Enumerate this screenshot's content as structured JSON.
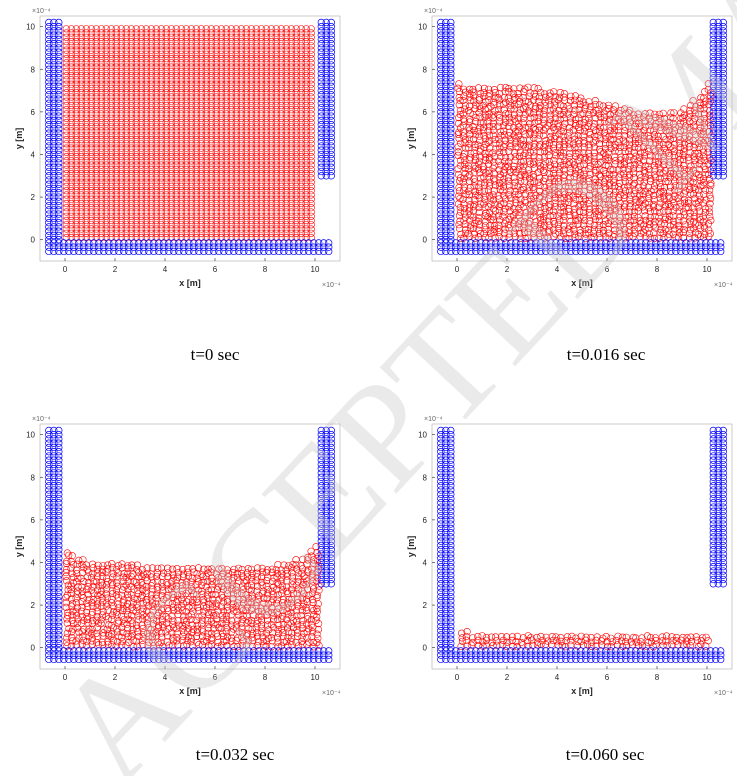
{
  "watermark": "ACCEPTED MANUSCRIPT",
  "chart_data": [
    {
      "type": "scatter",
      "caption": "t=0 sec",
      "xlabel": "x [m]",
      "ylabel": "y [m]",
      "x_exponent": "×10⁻⁴",
      "y_exponent": "×10⁻⁴",
      "xlim": [
        -1,
        11
      ],
      "ylim": [
        -1,
        10.5
      ],
      "xticks": [
        "0",
        "2",
        "4",
        "6",
        "8",
        "10"
      ],
      "yticks": [
        "0",
        "2",
        "4",
        "6",
        "8",
        "10"
      ],
      "series": [
        {
          "color": "#0000ff",
          "marker": "circle",
          "walls": [
            {
              "x0": -0.25,
              "x1": -0.25,
              "y0": 0,
              "y1": 10.3
            },
            {
              "x0": -0.25,
              "x1": 10.25,
              "y0": -0.15,
              "y1": -0.15
            },
            {
              "x0": 10.25,
              "x1": 10.25,
              "y0": 3.0,
              "y1": 10.3
            }
          ]
        },
        {
          "color": "#ff0000",
          "marker": "circle",
          "fluid_profile": {
            "x": [
              0.05,
              9.9
            ],
            "top_y": [
              9.9,
              9.9
            ]
          }
        }
      ]
    },
    {
      "type": "scatter",
      "caption": "t=0.016 sec",
      "xlabel": "x [m]",
      "ylabel": "y [m]",
      "x_exponent": "×10⁻⁴",
      "y_exponent": "×10⁻⁴",
      "xlim": [
        -1,
        11
      ],
      "ylim": [
        -1,
        10.5
      ],
      "xticks": [
        "0",
        "2",
        "4",
        "6",
        "8",
        "10"
      ],
      "yticks": [
        "0",
        "2",
        "4",
        "6",
        "8",
        "10"
      ],
      "series": [
        {
          "color": "#0000ff",
          "marker": "circle",
          "walls": [
            {
              "x0": -0.25,
              "x1": -0.25,
              "y0": 0,
              "y1": 10.3
            },
            {
              "x0": -0.25,
              "x1": 10.25,
              "y0": -0.15,
              "y1": -0.15
            },
            {
              "x0": 10.25,
              "x1": 10.25,
              "y0": 3.0,
              "y1": 10.3
            }
          ]
        },
        {
          "color": "#ff0000",
          "marker": "circle",
          "fluid_profile": {
            "x": [
              0.1,
              1,
              2,
              3,
              4,
              5,
              6,
              7,
              8,
              9,
              9.6,
              10.1
            ],
            "top_y": [
              7.3,
              7.2,
              7.15,
              7.15,
              7.0,
              6.7,
              6.4,
              6.1,
              6.0,
              6.0,
              6.6,
              7.3
            ]
          }
        }
      ]
    },
    {
      "type": "scatter",
      "caption": "t=0.032 sec",
      "xlabel": "x [m]",
      "ylabel": "y [m]",
      "x_exponent": "×10⁻⁴",
      "y_exponent": "×10⁻⁴",
      "xlim": [
        -1,
        11
      ],
      "ylim": [
        -1,
        10.5
      ],
      "xticks": [
        "0",
        "2",
        "4",
        "6",
        "8",
        "10"
      ],
      "yticks": [
        "0",
        "2",
        "4",
        "6",
        "8",
        "10"
      ],
      "series": [
        {
          "color": "#0000ff",
          "marker": "circle",
          "walls": [
            {
              "x0": -0.25,
              "x1": -0.25,
              "y0": 0,
              "y1": 10.3
            },
            {
              "x0": -0.25,
              "x1": 10.25,
              "y0": -0.15,
              "y1": -0.15
            },
            {
              "x0": 10.25,
              "x1": 10.25,
              "y0": 3.0,
              "y1": 10.3
            }
          ]
        },
        {
          "color": "#ff0000",
          "marker": "circle",
          "fluid_profile": {
            "x": [
              0.1,
              1,
              2,
              3,
              4,
              5,
              6,
              7,
              8,
              9,
              9.6,
              10.1
            ],
            "top_y": [
              4.5,
              4.0,
              3.9,
              3.9,
              3.85,
              3.85,
              3.85,
              3.85,
              3.85,
              4.0,
              4.2,
              4.8
            ]
          }
        }
      ]
    },
    {
      "type": "scatter",
      "caption": "t=0.060 sec",
      "xlabel": "x [m]",
      "ylabel": "y [m]",
      "x_exponent": "×10⁻⁴",
      "y_exponent": "×10⁻⁴",
      "xlim": [
        -1,
        11
      ],
      "ylim": [
        -1,
        10.5
      ],
      "xticks": [
        "0",
        "2",
        "4",
        "6",
        "8",
        "10"
      ],
      "yticks": [
        "0",
        "2",
        "4",
        "6",
        "8",
        "10"
      ],
      "series": [
        {
          "color": "#0000ff",
          "marker": "circle",
          "walls": [
            {
              "x0": -0.25,
              "x1": -0.25,
              "y0": 0,
              "y1": 10.3
            },
            {
              "x0": -0.25,
              "x1": 10.25,
              "y0": -0.15,
              "y1": -0.15
            },
            {
              "x0": 10.25,
              "x1": 10.25,
              "y0": 3.0,
              "y1": 10.3
            }
          ]
        },
        {
          "color": "#ff0000",
          "marker": "circle",
          "fluid_profile": {
            "x": [
              0.2,
              1,
              2,
              3,
              4,
              5,
              6,
              7,
              8,
              9,
              10.1
            ],
            "top_y": [
              0.8,
              0.55,
              0.55,
              0.55,
              0.55,
              0.55,
              0.55,
              0.55,
              0.55,
              0.55,
              0.6
            ]
          }
        }
      ]
    }
  ]
}
